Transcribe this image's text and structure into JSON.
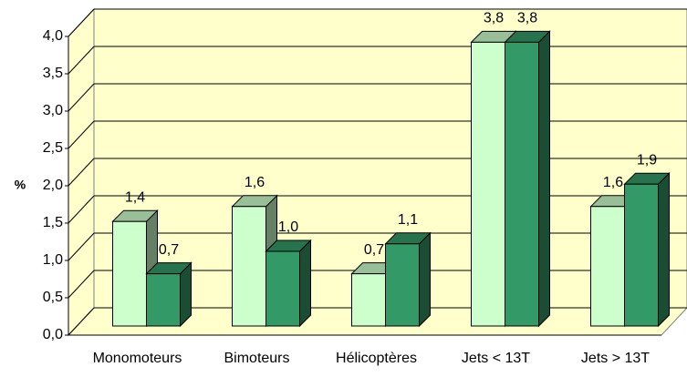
{
  "chart_data": {
    "type": "bar3d",
    "y_label": "%",
    "categories": [
      "Monomoteurs",
      "Bimoteurs",
      "Hélicoptères",
      "Jets < 13T",
      "Jets > 13T"
    ],
    "series": [
      {
        "color": "#ccffcc",
        "values": [
          1.4,
          1.6,
          0.7,
          3.8,
          1.6
        ],
        "value_labels": [
          "1,4",
          "1,6",
          "0,7",
          "3,8",
          "1,6"
        ]
      },
      {
        "color": "#339966",
        "values": [
          0.7,
          1.0,
          1.1,
          3.8,
          1.9
        ],
        "value_labels": [
          "0,7",
          "1,0",
          "1,1",
          "3,8",
          "1,9"
        ]
      }
    ],
    "ylim": [
      0,
      4
    ],
    "yticks": [
      {
        "value": 0,
        "label": "0,0"
      },
      {
        "value": 0.5,
        "label": "0,5"
      },
      {
        "value": 1,
        "label": "1,0"
      },
      {
        "value": 1.5,
        "label": "1,5"
      },
      {
        "value": 2,
        "label": "2,0"
      },
      {
        "value": 2.5,
        "label": "2,5"
      },
      {
        "value": 3,
        "label": "3,0"
      },
      {
        "value": 3.5,
        "label": "3,5"
      },
      {
        "value": 4,
        "label": "4,0"
      }
    ],
    "grid": true
  }
}
